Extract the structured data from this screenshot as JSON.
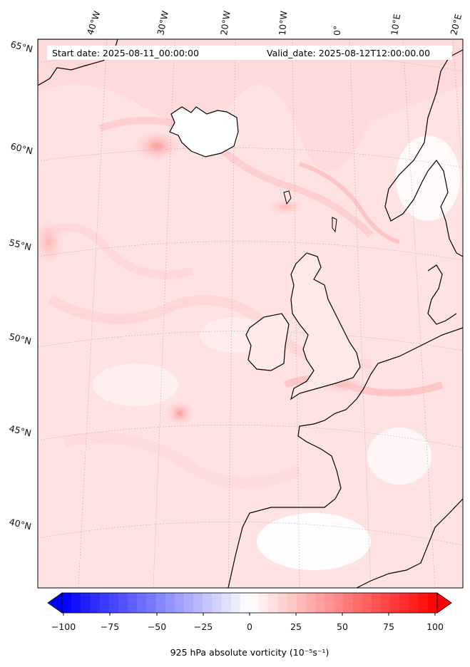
{
  "header": {
    "start_date": "Start date: 2025-08-11_00:00:00",
    "valid_date": "Valid_date: 2025-08-12T12:00:00.00"
  },
  "map": {
    "lon_labels": [
      "40°W",
      "30°W",
      "20°W",
      "10°W",
      "0°",
      "10°E",
      "20°E"
    ],
    "lat_labels": [
      "65°N",
      "60°N",
      "55°N",
      "50°N",
      "45°N",
      "40°N"
    ],
    "background_color": "#ffe6e6",
    "coastline_color": "#000000"
  },
  "colorbar": {
    "ticks": [
      "−100",
      "−75",
      "−50",
      "−25",
      "0",
      "25",
      "50",
      "75",
      "100"
    ],
    "min": -100,
    "max": 100,
    "label": "925 hPa absolute vorticity (10⁻⁵s⁻¹)",
    "colormap": "bwr",
    "low_color": "#0000ff",
    "mid_color": "#ffffff",
    "high_color": "#ff0000"
  }
}
